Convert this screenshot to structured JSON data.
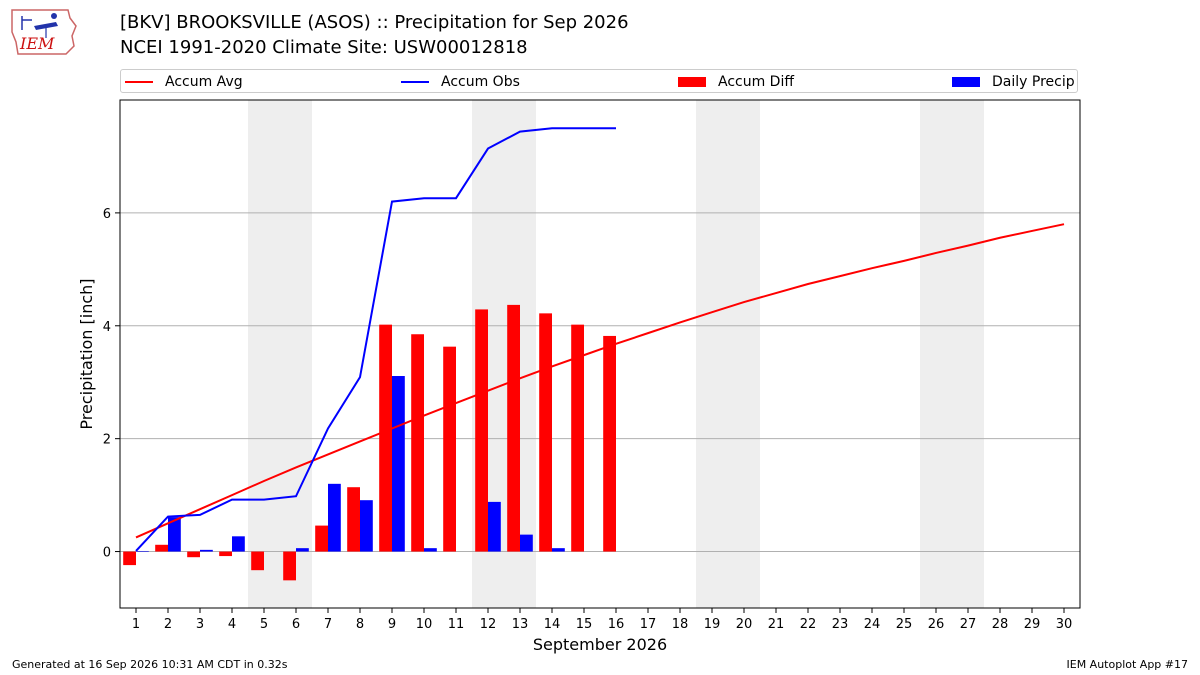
{
  "header": {
    "logo_text": "IEM",
    "title_line1": "[BKV] BROOKSVILLE (ASOS) :: Precipitation for Sep 2026",
    "title_line2": "NCEI 1991-2020 Climate Site: USW00012818"
  },
  "legend": {
    "placement": "top",
    "items": [
      {
        "label": "Accum Avg",
        "kind": "line",
        "color": "#ff0000"
      },
      {
        "label": "Accum Obs",
        "kind": "line",
        "color": "#0000ff"
      },
      {
        "label": "Accum Diff",
        "kind": "patch",
        "color": "#ff0000"
      },
      {
        "label": "Daily Precip",
        "kind": "patch",
        "color": "#0000ff"
      }
    ]
  },
  "chart_data": {
    "type": "bar",
    "xlabel": "September 2026",
    "ylabel": "Precipitation [inch]",
    "xlim": [
      0.5,
      30.5
    ],
    "ylim": [
      -1.0,
      8.0
    ],
    "xticks": [
      1,
      2,
      3,
      4,
      5,
      6,
      7,
      8,
      9,
      10,
      11,
      12,
      13,
      14,
      15,
      16,
      17,
      18,
      19,
      20,
      21,
      22,
      23,
      24,
      25,
      26,
      27,
      28,
      29,
      30
    ],
    "yticks": [
      0,
      2,
      4,
      6
    ],
    "grid": "horizontal",
    "weekend_shading": [
      [
        4.5,
        6.5
      ],
      [
        11.5,
        13.5
      ],
      [
        18.5,
        20.5
      ],
      [
        25.5,
        27.5
      ]
    ],
    "series": [
      {
        "name": "Accum Avg",
        "kind": "line",
        "color": "#ff0000",
        "x": [
          1,
          2,
          3,
          4,
          5,
          6,
          7,
          8,
          9,
          10,
          11,
          12,
          13,
          14,
          15,
          16,
          17,
          18,
          19,
          20,
          21,
          22,
          23,
          24,
          25,
          26,
          27,
          28,
          29,
          30
        ],
        "values": [
          0.25,
          0.5,
          0.75,
          1.0,
          1.25,
          1.49,
          1.72,
          1.95,
          2.18,
          2.41,
          2.63,
          2.85,
          3.07,
          3.28,
          3.48,
          3.68,
          3.87,
          4.06,
          4.24,
          4.42,
          4.58,
          4.74,
          4.88,
          5.02,
          5.15,
          5.29,
          5.42,
          5.56,
          5.68,
          5.8
        ]
      },
      {
        "name": "Accum Obs",
        "kind": "line",
        "color": "#0000ff",
        "x": [
          1,
          2,
          3,
          4,
          5,
          6,
          7,
          8,
          9,
          10,
          11,
          12,
          13,
          14,
          15,
          16
        ],
        "values": [
          0.01,
          0.62,
          0.65,
          0.92,
          0.92,
          0.98,
          2.18,
          3.09,
          6.2,
          6.26,
          6.26,
          7.14,
          7.44,
          7.5,
          7.5,
          7.5
        ]
      },
      {
        "name": "Accum Diff",
        "kind": "bar",
        "color": "#ff0000",
        "x": [
          1,
          2,
          3,
          4,
          5,
          6,
          7,
          8,
          9,
          10,
          11,
          12,
          13,
          14,
          15,
          16
        ],
        "values": [
          -0.24,
          0.12,
          -0.1,
          -0.08,
          -0.33,
          -0.51,
          0.46,
          1.14,
          4.02,
          3.85,
          3.63,
          4.29,
          4.37,
          4.22,
          4.02,
          3.82
        ]
      },
      {
        "name": "Daily Precip",
        "kind": "bar",
        "color": "#0000ff",
        "x": [
          1,
          2,
          3,
          4,
          5,
          6,
          7,
          8,
          9,
          10,
          11,
          12,
          13,
          14,
          15,
          16
        ],
        "values": [
          0.01,
          0.61,
          0.03,
          0.27,
          0.0,
          0.06,
          1.2,
          0.91,
          3.11,
          0.06,
          0.0,
          0.88,
          0.3,
          0.06,
          0.0,
          0.0
        ]
      }
    ]
  },
  "footer": {
    "left": "Generated at 16 Sep 2026 10:31 AM CDT in 0.32s",
    "right": "IEM Autoplot App #17"
  }
}
